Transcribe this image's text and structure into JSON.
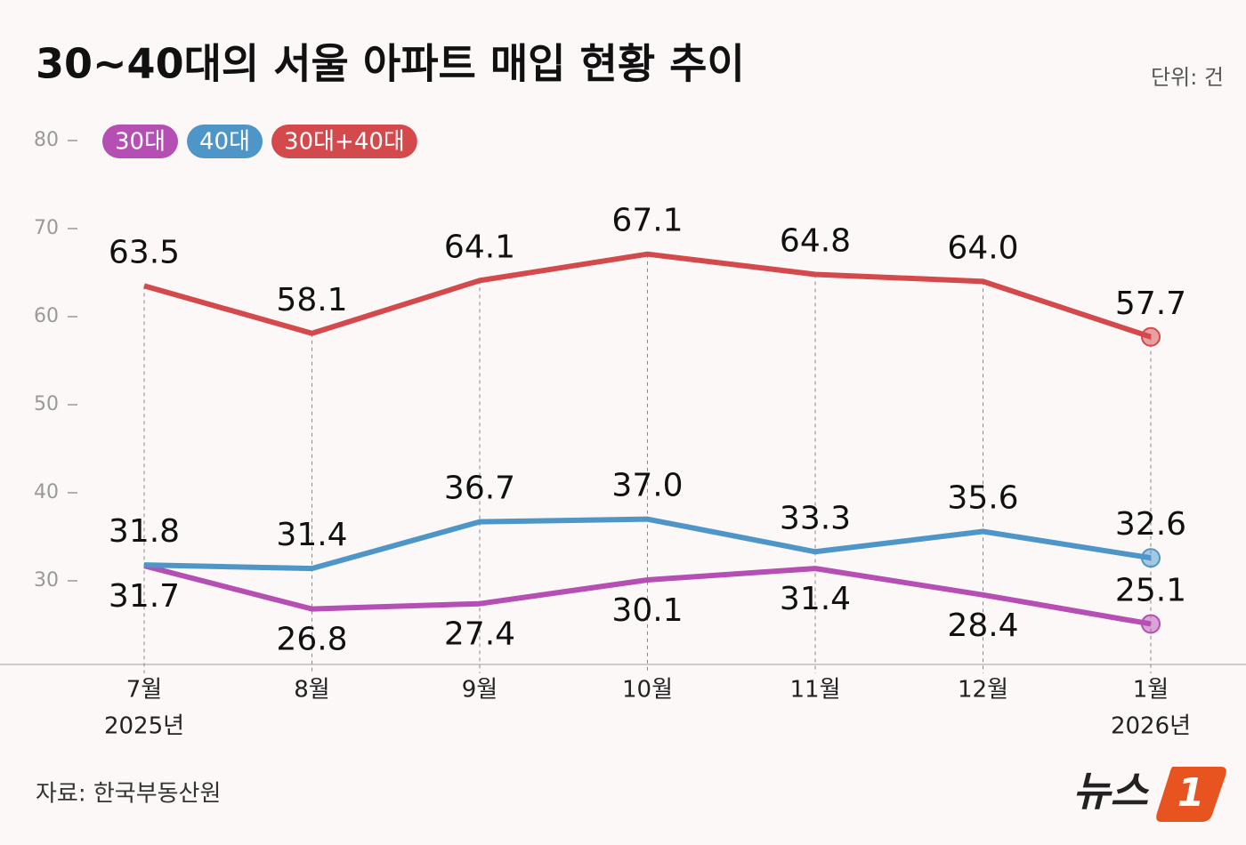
{
  "chart_data": {
    "type": "line",
    "title": "30~40대의 서울 아파트 매입 현황 추이",
    "unit": "단위: 건",
    "source": "자료: 한국부동산원",
    "logo": {
      "text": "뉴스",
      "mark": "1"
    },
    "categories": [
      "7월",
      "8월",
      "9월",
      "10월",
      "11월",
      "12월",
      "1월"
    ],
    "year_labels": [
      "2025년",
      null,
      null,
      null,
      null,
      null,
      "2026년"
    ],
    "ylim": [
      20.5,
      80
    ],
    "yticks": [
      30,
      40,
      50,
      60,
      70,
      80
    ],
    "series": [
      {
        "name": "30대",
        "color": "#b54fb3",
        "label_position": "below",
        "values": [
          31.7,
          26.8,
          27.4,
          30.1,
          31.4,
          28.4,
          25.1
        ],
        "value_labels": [
          "31.7",
          "26.8",
          "27.4",
          "30.1",
          "31.4",
          "28.4",
          "25.1"
        ]
      },
      {
        "name": "40대",
        "color": "#4f96c8",
        "label_position": "above",
        "values": [
          31.8,
          31.4,
          36.7,
          37.0,
          33.3,
          35.6,
          32.6
        ],
        "value_labels": [
          "31.8",
          "31.4",
          "36.7",
          "37.0",
          "33.3",
          "35.6",
          "32.6"
        ]
      },
      {
        "name": "30대+40대",
        "color": "#d44a4c",
        "label_position": "above",
        "values": [
          63.5,
          58.1,
          64.1,
          67.1,
          64.8,
          64.0,
          57.7
        ],
        "value_labels": [
          "63.5",
          "58.1",
          "64.1",
          "67.1",
          "64.8",
          "64.0",
          "57.7"
        ]
      }
    ]
  }
}
